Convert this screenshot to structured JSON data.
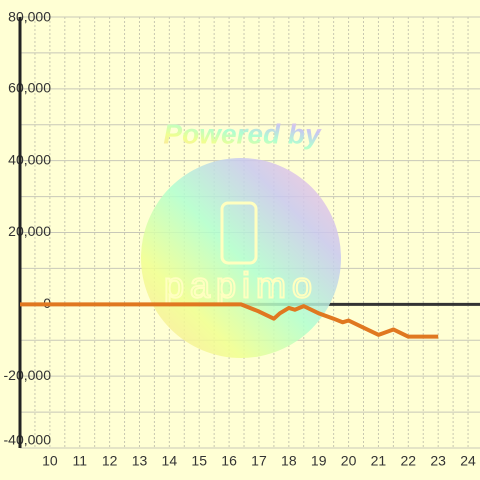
{
  "chart_data": {
    "type": "line",
    "watermark": "Powered by",
    "watermark_logo": "papimo",
    "x": [
      9,
      16.4,
      17,
      17.5,
      17.7,
      18,
      18.2,
      18.5,
      19,
      19.5,
      19.8,
      20,
      20.5,
      21,
      21.5,
      22,
      22.5,
      23
    ],
    "series": [
      {
        "color": "#e07820",
        "values": [
          0,
          0,
          -2000,
          -4000,
          -2500,
          -1000,
          -1500,
          -500,
          -2500,
          -4000,
          -5000,
          -4500,
          -6500,
          -8500,
          -7000,
          -9000,
          -9000,
          -9000
        ]
      }
    ],
    "xlim": [
      9,
      24.4
    ],
    "xticks": [
      10,
      11,
      12,
      13,
      14,
      15,
      16,
      17,
      18,
      19,
      20,
      21,
      22,
      23,
      24
    ],
    "ylim": [
      -40000,
      80000
    ],
    "yticks": [
      {
        "value": 80000,
        "label": "80,000"
      },
      {
        "value": 60000,
        "label": "60,000"
      },
      {
        "value": 40000,
        "label": "40,000"
      },
      {
        "value": 20000,
        "label": "20,000"
      },
      0,
      {
        "value": -20000,
        "label": "-20,000"
      },
      {
        "value": -40000,
        "label": "-40,000"
      }
    ],
    "yminor": [
      70000,
      50000,
      30000,
      10000,
      -10000,
      -30000
    ],
    "xminor": [
      9.5,
      10.5,
      11.5,
      12.5,
      13.5,
      14.5,
      15.5,
      16.5,
      17.5,
      18.5,
      19.5,
      20.5,
      21.5,
      22.5,
      23.5
    ],
    "grid": true
  }
}
